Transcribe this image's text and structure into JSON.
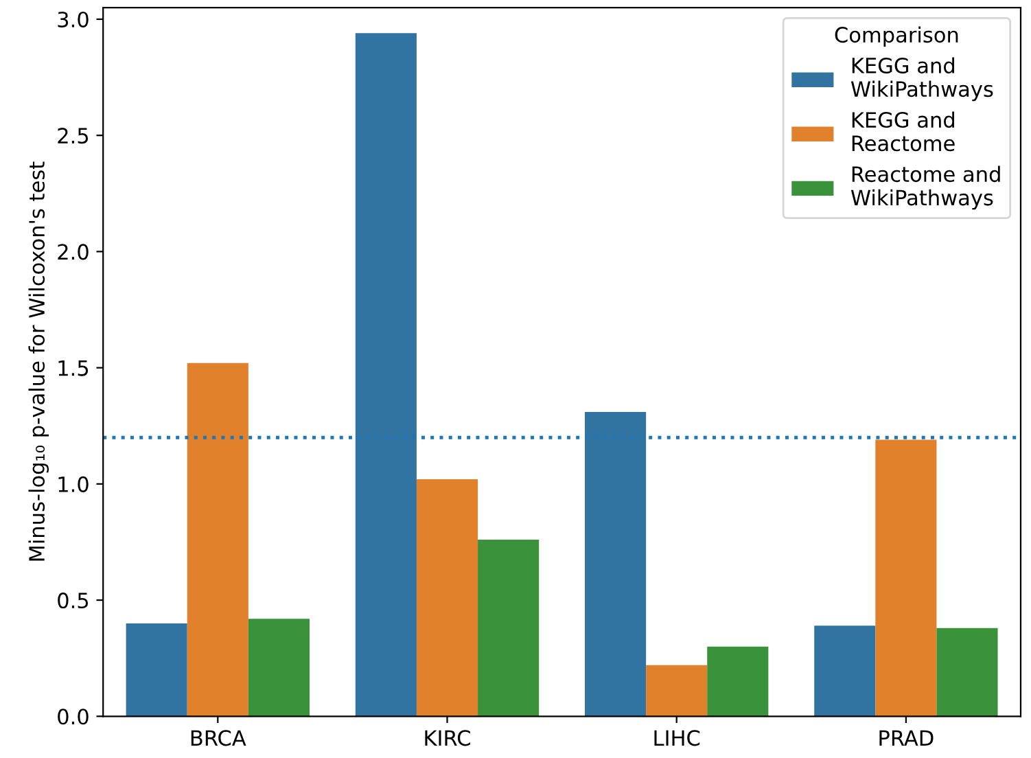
{
  "chart_data": {
    "type": "bar",
    "ylabel": "Minus-log₁₀ p-value for Wilcoxon's test",
    "categories": [
      "BRCA",
      "KIRC",
      "LIHC",
      "PRAD"
    ],
    "series": [
      {
        "name": "KEGG and\nWikiPathways",
        "color": "#3274a1",
        "values": [
          0.4,
          2.94,
          1.31,
          0.39
        ]
      },
      {
        "name": "KEGG and\nReactome",
        "color": "#e1812c",
        "values": [
          1.52,
          1.02,
          0.22,
          1.19
        ]
      },
      {
        "name": "Reactome and\nWikiPathways",
        "color": "#3a923a",
        "values": [
          0.42,
          0.76,
          0.3,
          0.38
        ]
      }
    ],
    "ylim": [
      0,
      3.05
    ],
    "yticks": [
      {
        "value": 0,
        "label": "0.0"
      },
      {
        "value": 0.5,
        "label": "0.5"
      },
      {
        "value": 1,
        "label": "1.0"
      },
      {
        "value": 1.5,
        "label": "1.5"
      },
      {
        "value": 2,
        "label": "2.0"
      },
      {
        "value": 2.5,
        "label": "2.5"
      },
      {
        "value": 3,
        "label": "3.0"
      }
    ],
    "ref_lines": [
      {
        "axis": "y",
        "value": 1.2,
        "color": "#1f77b4",
        "line_style": "dotted"
      }
    ],
    "legend": "top right",
    "legend_title": "Comparison",
    "grid": false
  }
}
